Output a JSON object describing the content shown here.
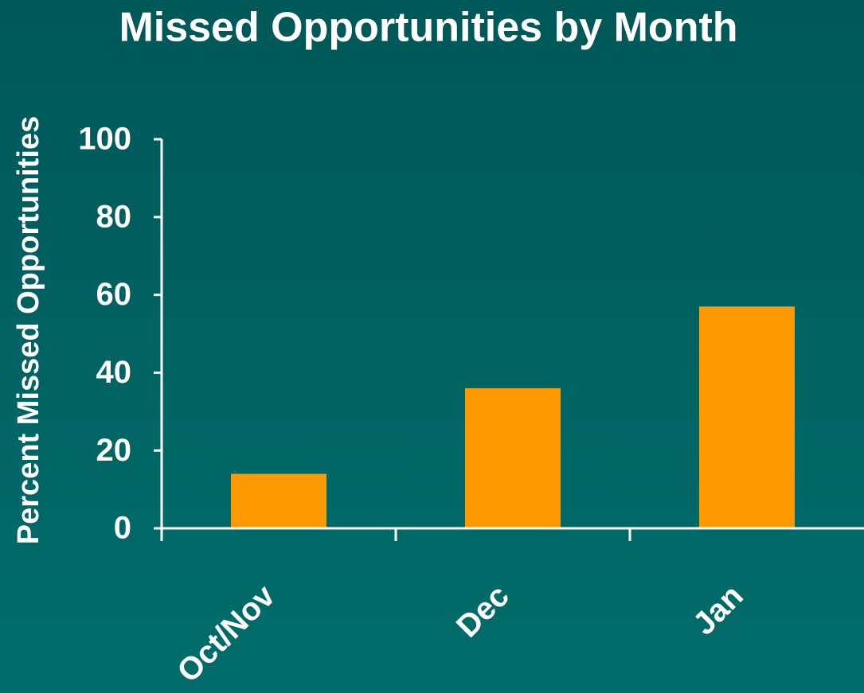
{
  "chart_data": {
    "type": "bar",
    "title": "Missed Opportunities by Month",
    "y_label": "Percent Missed Opportunities",
    "categories": [
      "Oct/Nov",
      "Dec",
      "Jan"
    ],
    "values": [
      14,
      36,
      57
    ],
    "color": "#ff9900",
    "ylim": [
      0,
      100
    ],
    "yticks": [
      0,
      20,
      40,
      60,
      80,
      100
    ],
    "grid": false
  }
}
